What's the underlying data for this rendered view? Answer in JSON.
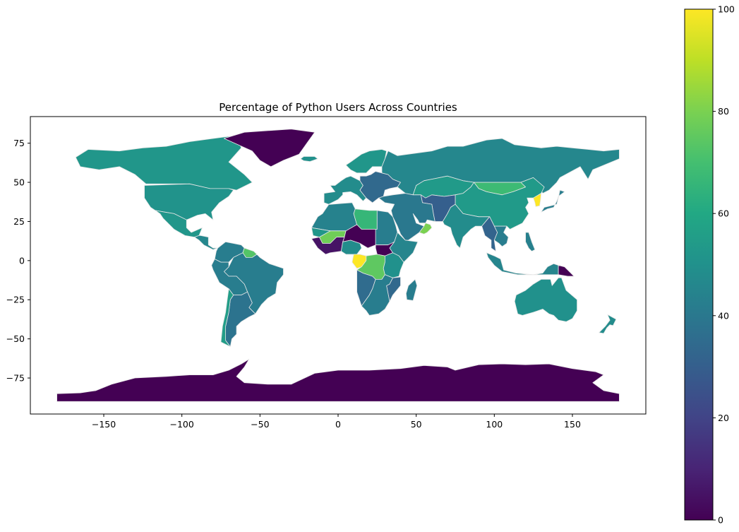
{
  "chart_data": {
    "type": "choropleth",
    "title": "Percentage of Python Users Across Countries",
    "xlabel": "",
    "ylabel": "",
    "xlim": [
      -197,
      197
    ],
    "ylim": [
      -98,
      92
    ],
    "xticks": [
      -150,
      -100,
      -50,
      0,
      50,
      100,
      150
    ],
    "yticks": [
      75,
      50,
      25,
      0,
      -25,
      -50,
      -75
    ],
    "xtick_labels": [
      "−150",
      "−100",
      "−50",
      "0",
      "50",
      "100",
      "150"
    ],
    "ytick_labels": [
      "75",
      "50",
      "25",
      "0",
      "−25",
      "−50",
      "−75"
    ],
    "colormap": "viridis",
    "colorbar": {
      "range": [
        0,
        100
      ],
      "ticks": [
        0,
        20,
        40,
        60,
        80,
        100
      ],
      "tick_labels": [
        "0",
        "20",
        "40",
        "60",
        "80",
        "100"
      ],
      "placement": "right"
    },
    "country_border_color": "#e6e6e6",
    "regions": [
      {
        "name": "Canada & Alaska",
        "value": 52
      },
      {
        "name": "Greenland",
        "value": 0
      },
      {
        "name": "United States",
        "value": 51
      },
      {
        "name": "Mexico",
        "value": 52
      },
      {
        "name": "Central America",
        "value": 46
      },
      {
        "name": "Colombia & Venezuela",
        "value": 42
      },
      {
        "name": "Guyana",
        "value": 73
      },
      {
        "name": "Brazil",
        "value": 42
      },
      {
        "name": "Peru & Bolivia",
        "value": 42
      },
      {
        "name": "Argentina",
        "value": 38
      },
      {
        "name": "Chile",
        "value": 55
      },
      {
        "name": "Iceland",
        "value": 50
      },
      {
        "name": "Scandinavia",
        "value": 52
      },
      {
        "name": "Western Europe",
        "value": 48
      },
      {
        "name": "Eastern Europe",
        "value": 34
      },
      {
        "name": "Russia",
        "value": 46
      },
      {
        "name": "Kazakhstan",
        "value": 54
      },
      {
        "name": "Mongolia",
        "value": 68
      },
      {
        "name": "China",
        "value": 54
      },
      {
        "name": "Korea",
        "value": 100
      },
      {
        "name": "Japan",
        "value": 42
      },
      {
        "name": "Central Asia",
        "value": 30
      },
      {
        "name": "Middle East",
        "value": 40
      },
      {
        "name": "Oman",
        "value": 80
      },
      {
        "name": "India",
        "value": 48
      },
      {
        "name": "Myanmar & Thailand",
        "value": 32
      },
      {
        "name": "Indochina",
        "value": 42
      },
      {
        "name": "Indonesia & Malaysia",
        "value": 45
      },
      {
        "name": "Papua New Guinea",
        "value": 0
      },
      {
        "name": "Philippines",
        "value": 43
      },
      {
        "name": "Australia",
        "value": 50
      },
      {
        "name": "New Zealand",
        "value": 48
      },
      {
        "name": "Morocco & Algeria",
        "value": 44
      },
      {
        "name": "Libya",
        "value": 66
      },
      {
        "name": "Egypt & Sudan",
        "value": 42
      },
      {
        "name": "Mali",
        "value": 78
      },
      {
        "name": "Mauritania",
        "value": 52
      },
      {
        "name": "Niger & Chad",
        "value": 0
      },
      {
        "name": "West Africa coast",
        "value": 5
      },
      {
        "name": "Nigeria",
        "value": 48
      },
      {
        "name": "Ethiopia & Horn",
        "value": 45
      },
      {
        "name": "South Sudan",
        "value": 0
      },
      {
        "name": "Congo",
        "value": 100
      },
      {
        "name": "DR Congo",
        "value": 75
      },
      {
        "name": "East Africa",
        "value": 50
      },
      {
        "name": "Angola",
        "value": 35
      },
      {
        "name": "Mozambique",
        "value": 34
      },
      {
        "name": "Southern Africa",
        "value": 42
      },
      {
        "name": "Madagascar",
        "value": 42
      },
      {
        "name": "Antarctica",
        "value": 0
      }
    ]
  }
}
